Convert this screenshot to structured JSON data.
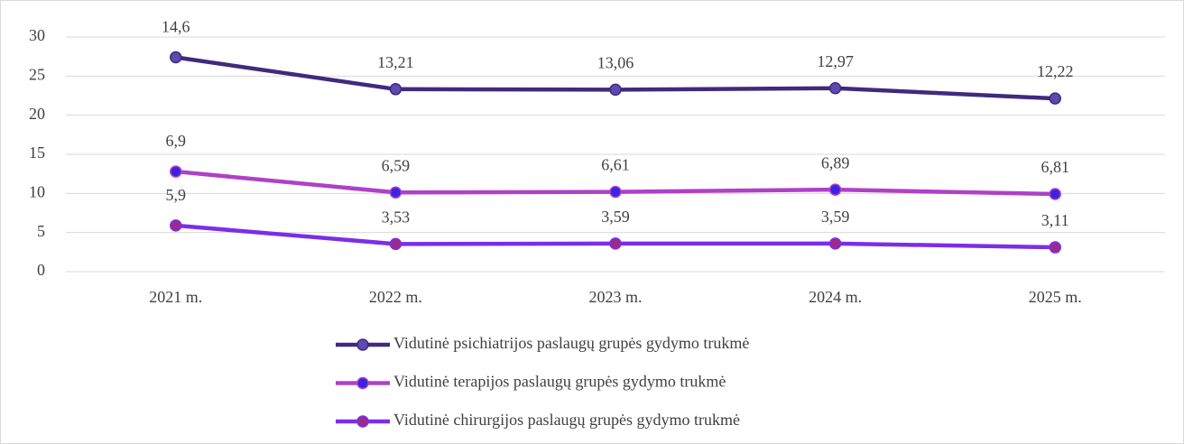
{
  "chart_data": {
    "type": "line",
    "stacked": true,
    "categories": [
      "2021 m.",
      "2022 m.",
      "2023 m.",
      "2024 m.",
      "2025 m."
    ],
    "series": [
      {
        "name": "Vidutinė psichiatrijos paslaugų grupės gydymo trukmė",
        "color": "#3f2a7e",
        "marker_color": "#5a4bb0",
        "marker_edge": "#3f2a7e",
        "values": [
          14.6,
          13.21,
          13.06,
          12.97,
          12.22
        ],
        "value_labels": [
          "14,6",
          "13,21",
          "13,06",
          "12,97",
          "12,22"
        ]
      },
      {
        "name": "Vidutinė terapijos paslaugų grupės gydymo trukmė",
        "color": "#b040c8",
        "marker_color": "#3a24e0",
        "marker_edge": "#b040c8",
        "values": [
          6.9,
          6.59,
          6.61,
          6.89,
          6.81
        ],
        "value_labels": [
          "6,9",
          "6,59",
          "6,61",
          "6,89",
          "6,81"
        ]
      },
      {
        "name": "Vidutinė chirurgijos paslaugų grupės gydymo trukmė",
        "color": "#7b2ee8",
        "marker_color": "#9a2a8c",
        "marker_edge": "#7b2ee8",
        "values": [
          5.9,
          3.53,
          3.59,
          3.59,
          3.11
        ],
        "value_labels": [
          "5,9",
          "3,53",
          "3,59",
          "3,59",
          "3,11"
        ]
      }
    ],
    "ylim": [
      0,
      30
    ],
    "yticks": [
      0,
      5,
      10,
      15,
      20,
      25,
      30
    ],
    "grid": true,
    "legend": "bottom"
  }
}
